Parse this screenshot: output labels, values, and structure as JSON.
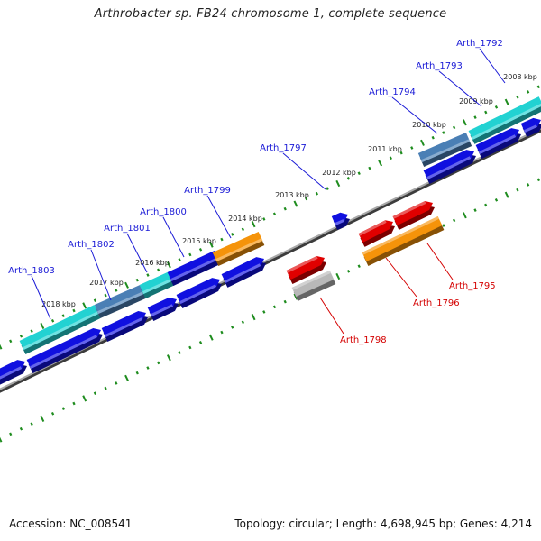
{
  "title": "Arthrobacter sp. FB24 chromosome 1, complete sequence",
  "footer": {
    "accession": "Accession: NC_008541",
    "topology": "Topology: circular; Length: 4,698,945 bp; Genes: 4,214"
  },
  "colors": {
    "forward_gene_label": "#1a1ad6",
    "reverse_gene_label": "#d40000",
    "backbone": "#8a8a8a",
    "tick": "#1e8c1e",
    "blue_gene": "#1010e0",
    "cyan_gene": "#22d2d2",
    "steel_gene": "#4a7fb5",
    "orange_gene": "#f5930a",
    "red_gene": "#e00000",
    "gray_gene": "#b8b8b8"
  },
  "kbp_labels": [
    "2008 kbp",
    "2009 kbp",
    "2010 kbp",
    "2011 kbp",
    "2012 kbp",
    "2013 kbp",
    "2014 kbp",
    "2015 kbp",
    "2016 kbp",
    "2017 kbp",
    "2018 kbp"
  ],
  "forward_gene_labels": [
    "Arth_1792",
    "Arth_1793",
    "Arth_1794",
    "Arth_1797",
    "Arth_1799",
    "Arth_1800",
    "Arth_1801",
    "Arth_1802",
    "Arth_1803"
  ],
  "reverse_gene_labels": [
    "Arth_1795",
    "Arth_1796",
    "Arth_1798"
  ]
}
